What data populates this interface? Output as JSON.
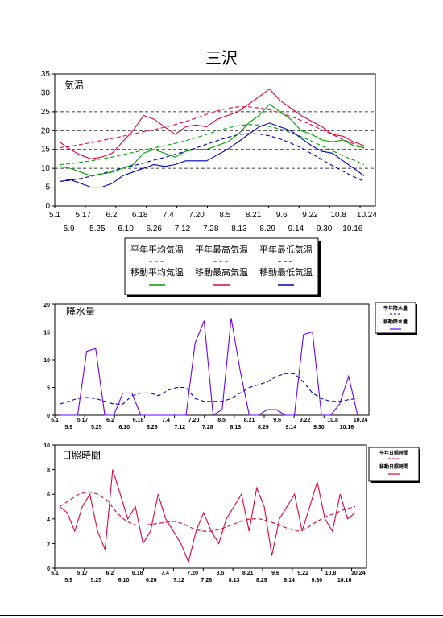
{
  "page": {
    "title": "三沢"
  },
  "colors": {
    "green": "#00a000",
    "red": "#e8003a",
    "blue": "#0000c0",
    "purple": "#6a00ff",
    "crimson": "#e0003a",
    "grid": "#000000"
  },
  "chart_data": [
    {
      "type": "line",
      "panel_label": "気温",
      "ylim": [
        0,
        35
      ],
      "yticks": [
        "0",
        "5",
        "10",
        "15",
        "20",
        "25",
        "30",
        "35"
      ],
      "xticks_top": [
        "5.1",
        "6.2",
        "7.4",
        "8.5",
        "9.6",
        "10.8"
      ],
      "xticks_row1": [
        "5.17",
        "6.18",
        "7.20",
        "8.21",
        "9.22",
        "10.24"
      ],
      "xticks_row2": [
        "5.9",
        "6.10",
        "7.12",
        "8.13",
        "9.14",
        "10.16"
      ],
      "xticks_row3": [
        "5.25",
        "6.26",
        "7.28",
        "8.29",
        "9.30"
      ],
      "x_start": "5.1",
      "legend": {
        "row1": [
          "平年平均気温",
          "平年最高気温",
          "平年最低気温"
        ],
        "row2": [
          "移動平均気温",
          "移動最高気温",
          "移動最低気温"
        ]
      },
      "series": [
        {
          "name": "平年平均気温",
          "color": "green",
          "dashed": true,
          "values": [
            11,
            11.2,
            11.6,
            12,
            12.5,
            13,
            13.6,
            14.2,
            14.8,
            15.4,
            16,
            16.6,
            17.3,
            18.1,
            19,
            19.9,
            20.7,
            21.3,
            21.6,
            21.5,
            21.1,
            20.4,
            19.5,
            18.4,
            17.2,
            15.9,
            14.6,
            13.3,
            12.2,
            11
          ]
        },
        {
          "name": "平年最高気温",
          "color": "red",
          "dashed": true,
          "values": [
            15.5,
            15.8,
            16.3,
            16.8,
            17.4,
            17.9,
            18.5,
            19.1,
            19.7,
            20.3,
            20.9,
            21.6,
            22.4,
            23.3,
            24.3,
            25.2,
            25.9,
            26.3,
            26.3,
            26,
            25.5,
            24.7,
            23.8,
            22.7,
            21.5,
            20.2,
            18.9,
            17.6,
            16.5,
            15.3
          ]
        },
        {
          "name": "平年最低気温",
          "color": "blue",
          "dashed": true,
          "values": [
            6.5,
            6.8,
            7.3,
            7.9,
            8.6,
            9.3,
            10,
            10.7,
            11.4,
            12.2,
            12.9,
            13.7,
            14.5,
            15.4,
            16.4,
            17.3,
            18.2,
            18.9,
            19.2,
            19.1,
            18.6,
            17.8,
            16.7,
            15.4,
            13.9,
            12.3,
            10.7,
            9.2,
            7.8,
            6.5
          ]
        },
        {
          "name": "移動平均気温",
          "color": "green",
          "dashed": false,
          "values": [
            10.5,
            10,
            9,
            8,
            8.5,
            9,
            10,
            11,
            14,
            15,
            14,
            13,
            14.5,
            15,
            15,
            16,
            17,
            19,
            22,
            24,
            27,
            25,
            23,
            20,
            19,
            17.5,
            17,
            17.5,
            16,
            15.5
          ]
        },
        {
          "name": "移動最高気温",
          "color": "red",
          "dashed": false,
          "values": [
            17,
            15,
            13.5,
            12.5,
            13,
            14,
            17,
            20,
            24,
            23,
            21,
            19,
            21,
            21.5,
            21,
            23,
            24,
            25,
            27,
            29,
            31,
            28,
            26,
            24,
            22.5,
            21,
            19,
            18.5,
            17,
            16
          ]
        },
        {
          "name": "移動最低気温",
          "color": "blue",
          "dashed": false,
          "values": [
            6.5,
            7,
            6,
            5,
            5,
            6,
            8,
            9,
            10,
            11,
            10.5,
            11,
            12,
            12,
            12,
            13.5,
            15,
            17,
            19,
            21,
            22,
            21,
            20,
            18,
            16,
            14.5,
            14,
            12,
            10,
            8
          ]
        }
      ]
    },
    {
      "type": "line",
      "panel_label": "降水量",
      "ylim": [
        0,
        20
      ],
      "yticks": [
        "0",
        "5",
        "10",
        "15",
        "20"
      ],
      "xticks_top": [
        "5.1",
        "6.2",
        "7.4",
        "8.5",
        "9.6",
        "10.8"
      ],
      "xticks_row1": [
        "5.17",
        "6.18",
        "7.20",
        "8.21",
        "9.22",
        "10.24"
      ],
      "xticks_row2": [
        "5.9",
        "6.10",
        "7.12",
        "8.13",
        "9.14",
        "10.16"
      ],
      "xticks_row3": [
        "5.25",
        "6.26",
        "7.28",
        "8.29",
        "9.30"
      ],
      "legend": {
        "row1": [
          "平年降水量"
        ],
        "row2": [
          "移動降水量"
        ]
      },
      "series": [
        {
          "name": "平年降水量",
          "color": "blue",
          "dashed": true,
          "values": [
            2,
            2.5,
            3,
            3.2,
            3,
            2.5,
            2,
            2,
            3.5,
            4,
            4,
            3.5,
            4.5,
            5,
            5,
            3,
            2.5,
            2.5,
            2.5,
            3,
            4,
            5,
            5.5,
            6,
            7,
            7.5,
            7.5,
            6,
            4,
            3,
            2.5,
            2.5,
            2.8,
            3
          ]
        },
        {
          "name": "移動降水量",
          "color": "purple",
          "dashed": false,
          "values": [
            0,
            0,
            0,
            11.5,
            12,
            0,
            0,
            4,
            4,
            0,
            0,
            0,
            0,
            0,
            0,
            13,
            17,
            0,
            1,
            17.5,
            8,
            0,
            0,
            1,
            1,
            0,
            0,
            14.5,
            15,
            0,
            0,
            2,
            7,
            0
          ]
        }
      ]
    },
    {
      "type": "line",
      "panel_label": "日照時間",
      "ylim": [
        0,
        10
      ],
      "yticks": [
        "0",
        "2",
        "4",
        "6",
        "8",
        "10"
      ],
      "xticks_top": [
        "5.1",
        "6.2",
        "7.4",
        "8.5",
        "9.6",
        "10.8"
      ],
      "xticks_row1": [
        "5.17",
        "6.18",
        "7.20",
        "8.21",
        "9.22",
        "10.24"
      ],
      "xticks_row2": [
        "5.9",
        "6.10",
        "7.12",
        "8.13",
        "9.14",
        "10.16"
      ],
      "xticks_row3": [
        "5.25",
        "6.26",
        "7.28",
        "8.29",
        "9.30"
      ],
      "legend": {
        "row1": [
          "平年日照時間"
        ],
        "row2": [
          "移動日照時間"
        ]
      },
      "series": [
        {
          "name": "平年日照時間",
          "color": "crimson",
          "dashed": true,
          "values": [
            5,
            5.5,
            6,
            6.2,
            6,
            5.5,
            4.5,
            3.8,
            3.5,
            3.5,
            3.6,
            3.7,
            3.8,
            3.6,
            3.2,
            3,
            3,
            3.2,
            3.5,
            3.8,
            4,
            4,
            3.8,
            3.5,
            3.2,
            3,
            3.3,
            3.8,
            4.2,
            4.5,
            4.8,
            5
          ]
        },
        {
          "name": "移動日照時間",
          "color": "crimson",
          "dashed": false,
          "values": [
            5,
            4.5,
            3,
            5,
            6,
            3,
            1.5,
            8,
            6,
            4,
            5,
            2,
            3,
            6,
            4,
            3,
            2,
            0.5,
            3,
            4.5,
            3,
            2,
            4,
            5,
            6,
            3,
            6.5,
            5,
            1,
            4,
            5,
            6,
            3,
            5,
            7,
            4,
            3,
            6,
            4,
            4.5
          ]
        }
      ]
    }
  ]
}
